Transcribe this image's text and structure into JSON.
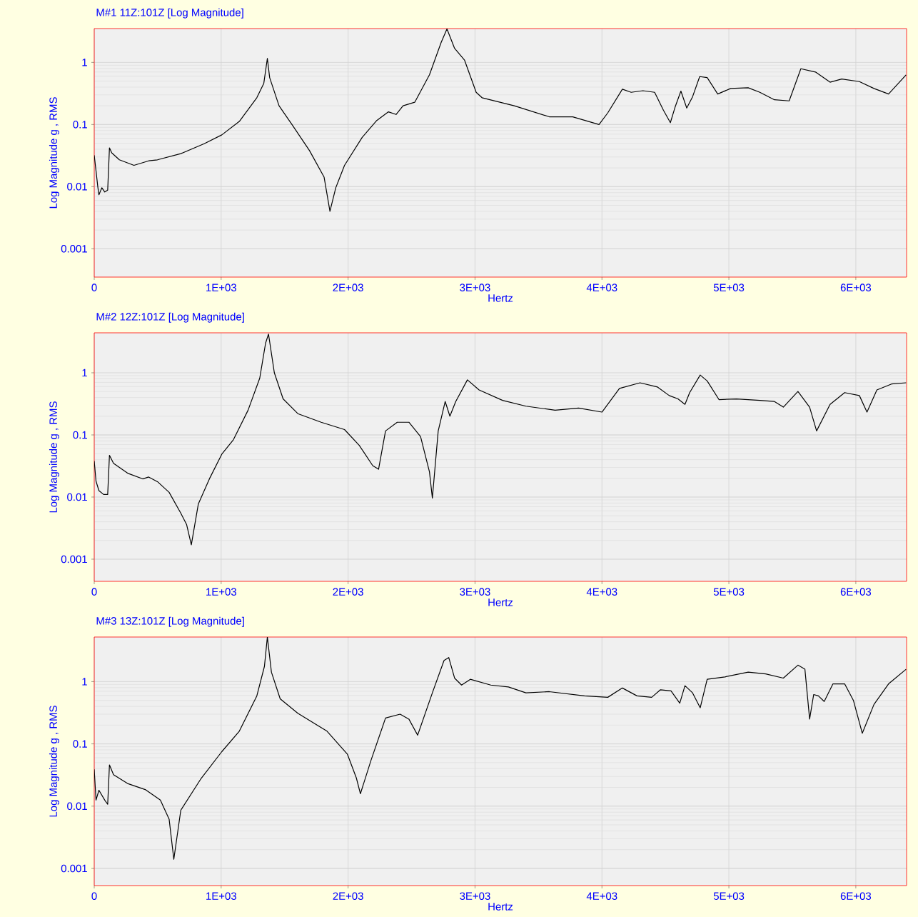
{
  "chart_data": [
    {
      "type": "line",
      "title": "M#1 11Z:101Z  [Log Magnitude]",
      "xlabel": "Hertz",
      "ylabel": "Log Magnitude g , RMS",
      "log": "y",
      "grid": true,
      "marker": "none",
      "line_style": "solid",
      "xlim": [
        0,
        6400
      ],
      "ylim": [
        0.00035,
        3.5
      ],
      "xticks": [
        0,
        {
          "value": 1000,
          "label": "1E+03"
        },
        {
          "value": 2000,
          "label": "2E+03"
        },
        {
          "value": 3000,
          "label": "3E+03"
        },
        {
          "value": 4000,
          "label": "4E+03"
        },
        {
          "value": 5000,
          "label": "5E+03"
        },
        {
          "value": 6000,
          "label": "6E+03"
        }
      ],
      "yticks": [
        0.001,
        0.01,
        0.1,
        1
      ],
      "x": [
        0,
        14,
        28,
        37,
        60,
        83,
        106,
        120,
        138,
        198,
        313,
        429,
        498,
        682,
        866,
        1005,
        1143,
        1281,
        1336,
        1364,
        1382,
        1456,
        1558,
        1696,
        1811,
        1857,
        1903,
        1972,
        2111,
        2226,
        2318,
        2378,
        2433,
        2525,
        2641,
        2733,
        2779,
        2839,
        2917,
        3009,
        3055,
        3309,
        3585,
        3770,
        3977,
        4046,
        4161,
        4230,
        4323,
        4415,
        4484,
        4539,
        4576,
        4622,
        4668,
        4714,
        4770,
        4829,
        4912,
        5014,
        5152,
        5244,
        5359,
        5475,
        5567,
        5682,
        5797,
        5889,
        6028,
        6143,
        6258,
        6396
      ],
      "series": [
        {
          "color": "#000000",
          "values": [
            0.032,
            0.018,
            0.01,
            0.0074,
            0.0096,
            0.0082,
            0.0088,
            0.042,
            0.035,
            0.027,
            0.022,
            0.026,
            0.027,
            0.034,
            0.049,
            0.068,
            0.112,
            0.27,
            0.46,
            1.16,
            0.57,
            0.2,
            0.1,
            0.038,
            0.0142,
            0.004,
            0.0096,
            0.022,
            0.062,
            0.116,
            0.16,
            0.145,
            0.2,
            0.228,
            0.63,
            2.09,
            3.45,
            1.68,
            1.09,
            0.33,
            0.27,
            0.2,
            0.133,
            0.133,
            0.1,
            0.154,
            0.37,
            0.33,
            0.35,
            0.33,
            0.17,
            0.107,
            0.19,
            0.345,
            0.184,
            0.28,
            0.59,
            0.57,
            0.31,
            0.38,
            0.39,
            0.33,
            0.25,
            0.24,
            0.79,
            0.7,
            0.48,
            0.54,
            0.49,
            0.38,
            0.31,
            0.63
          ]
        }
      ]
    },
    {
      "type": "line",
      "title": "M#2 12Z:101Z  [Log Magnitude]",
      "xlabel": "Hertz",
      "ylabel": "Log Magnitude g , RMS",
      "log": "y",
      "grid": true,
      "marker": "none",
      "line_style": "solid",
      "xlim": [
        0,
        6400
      ],
      "ylim": [
        0.00044,
        4.4
      ],
      "xticks": [
        0,
        {
          "value": 1000,
          "label": "1E+03"
        },
        {
          "value": 2000,
          "label": "2E+03"
        },
        {
          "value": 3000,
          "label": "3E+03"
        },
        {
          "value": 4000,
          "label": "4E+03"
        },
        {
          "value": 5000,
          "label": "5E+03"
        },
        {
          "value": 6000,
          "label": "6E+03"
        }
      ],
      "yticks": [
        0.001,
        0.01,
        0.1,
        1
      ],
      "x": [
        0,
        14,
        37,
        74,
        106,
        120,
        152,
        267,
        382,
        429,
        498,
        590,
        682,
        728,
        765,
        820,
        912,
        1005,
        1097,
        1212,
        1304,
        1350,
        1373,
        1419,
        1488,
        1604,
        1788,
        1972,
        2088,
        2194,
        2240,
        2295,
        2387,
        2479,
        2571,
        2641,
        2664,
        2710,
        2765,
        2802,
        2848,
        2940,
        3032,
        3217,
        3401,
        3631,
        3816,
        4000,
        4138,
        4300,
        4438,
        4530,
        4599,
        4654,
        4691,
        4774,
        4829,
        4922,
        5060,
        5244,
        5359,
        5429,
        5544,
        5636,
        5691,
        5797,
        5912,
        6028,
        6088,
        6166,
        6281,
        6396
      ],
      "series": [
        {
          "color": "#000000",
          "values": [
            0.038,
            0.018,
            0.0127,
            0.011,
            0.011,
            0.047,
            0.035,
            0.024,
            0.0196,
            0.021,
            0.0177,
            0.0119,
            0.0055,
            0.0036,
            0.0017,
            0.0077,
            0.0205,
            0.049,
            0.084,
            0.25,
            0.82,
            3.0,
            4.2,
            1.0,
            0.38,
            0.22,
            0.16,
            0.122,
            0.068,
            0.032,
            0.028,
            0.116,
            0.16,
            0.16,
            0.094,
            0.0255,
            0.0096,
            0.116,
            0.345,
            0.2,
            0.345,
            0.77,
            0.53,
            0.36,
            0.29,
            0.25,
            0.27,
            0.233,
            0.56,
            0.69,
            0.59,
            0.43,
            0.38,
            0.31,
            0.48,
            0.92,
            0.74,
            0.37,
            0.38,
            0.36,
            0.345,
            0.28,
            0.5,
            0.28,
            0.116,
            0.31,
            0.48,
            0.43,
            0.233,
            0.53,
            0.66,
            0.69
          ]
        }
      ]
    },
    {
      "type": "line",
      "title": "M#3 13Z:101Z  [Log Magnitude]",
      "xlabel": "Hertz",
      "ylabel": "Log Magnitude g , RMS",
      "log": "y",
      "grid": true,
      "marker": "none",
      "line_style": "solid",
      "xlim": [
        0,
        6400
      ],
      "ylim": [
        0.00053,
        5.2
      ],
      "xticks": [
        0,
        {
          "value": 1000,
          "label": "1E+03"
        },
        {
          "value": 2000,
          "label": "2E+03"
        },
        {
          "value": 3000,
          "label": "3E+03"
        },
        {
          "value": 4000,
          "label": "4E+03"
        },
        {
          "value": 5000,
          "label": "5E+03"
        },
        {
          "value": 6000,
          "label": "6E+03"
        }
      ],
      "yticks": [
        0.001,
        0.01,
        0.1,
        1
      ],
      "x": [
        0,
        14,
        37,
        83,
        106,
        120,
        152,
        267,
        406,
        521,
        590,
        627,
        682,
        843,
        1005,
        1143,
        1281,
        1341,
        1364,
        1396,
        1465,
        1604,
        1834,
        1995,
        2065,
        2097,
        2180,
        2295,
        2410,
        2479,
        2548,
        2664,
        2756,
        2793,
        2839,
        2894,
        2963,
        3124,
        3263,
        3401,
        3585,
        3862,
        4046,
        4161,
        4276,
        4392,
        4461,
        4544,
        4613,
        4654,
        4714,
        4774,
        4829,
        4968,
        5152,
        5290,
        5429,
        5544,
        5599,
        5636,
        5668,
        5705,
        5751,
        5820,
        5912,
        5981,
        6051,
        6143,
        6258,
        6396
      ],
      "series": [
        {
          "color": "#000000",
          "values": [
            0.039,
            0.0125,
            0.018,
            0.0125,
            0.0107,
            0.046,
            0.032,
            0.0229,
            0.0183,
            0.0125,
            0.0062,
            0.0014,
            0.0086,
            0.028,
            0.075,
            0.16,
            0.59,
            1.76,
            5.2,
            1.42,
            0.53,
            0.31,
            0.16,
            0.068,
            0.0284,
            0.0158,
            0.054,
            0.26,
            0.3,
            0.25,
            0.138,
            0.66,
            2.19,
            2.44,
            1.14,
            0.88,
            1.09,
            0.88,
            0.82,
            0.66,
            0.69,
            0.59,
            0.56,
            0.79,
            0.59,
            0.56,
            0.74,
            0.71,
            0.45,
            0.86,
            0.66,
            0.38,
            1.09,
            1.19,
            1.42,
            1.33,
            1.14,
            1.84,
            1.58,
            0.25,
            0.62,
            0.59,
            0.48,
            0.92,
            0.92,
            0.5,
            0.148,
            0.43,
            0.92,
            1.58
          ]
        }
      ]
    }
  ]
}
